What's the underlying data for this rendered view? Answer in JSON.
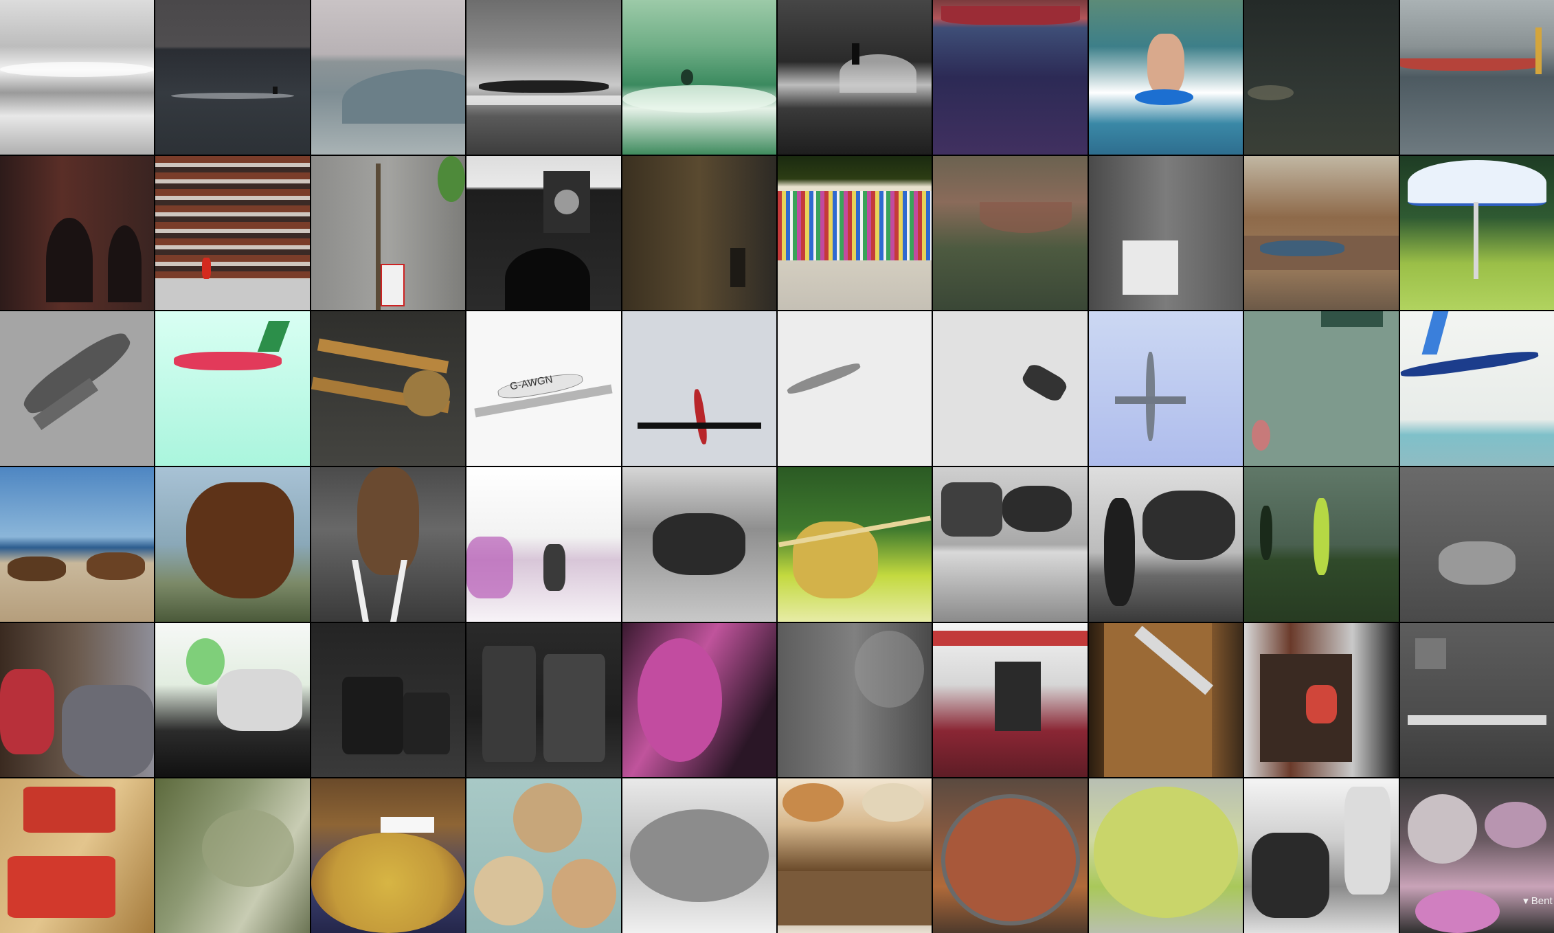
{
  "rows": 6,
  "cols": 10,
  "overlay_text": {
    "r2c3_sign": "",
    "r4c4_mark": "",
    "r3c4_registration": "G-AWGN",
    "r6c10_caption": "▾ Bent"
  },
  "tiles": [
    [
      "ocean-waves",
      "surfer-dusk",
      "wave-breaking",
      "surfers-paddling",
      "green-surf",
      "surfer-on-wave",
      "boat-on-water",
      "girl-bodyboard",
      "dark-sea",
      "boat-pole-man"
    ],
    [
      "brick-arches",
      "apartment-block",
      "street-signs",
      "clock-tower-arch",
      "old-building",
      "striped-fabric",
      "river-bridge",
      "blurred-street",
      "canal-town",
      "patio-umbrella"
    ],
    [
      "fighter-plane-blur",
      "red-jet",
      "biplane",
      "small-monoplane",
      "airliner-red",
      "jet-silhouette",
      "fighter-banking",
      "jet-overhead",
      "green-sky-plane",
      "colorful-airliner"
    ],
    [
      "beach-horse-race",
      "horse-head",
      "horse-parking-lot",
      "mural-figures",
      "pack-horse",
      "jousting-knight",
      "horse-carriage",
      "woman-with-horse",
      "beach-soccer",
      "white-horse-rider"
    ],
    [
      "bags-in-room",
      "doll-in-car",
      "dark-suitcases",
      "suitcase-stack",
      "pink-plush",
      "dark-interior",
      "airport-trolley",
      "scissors-on-box",
      "fridge-interior",
      "desk-room"
    ],
    [
      "square-pizza",
      "close-up-food",
      "loaded-pizza",
      "bento-trays",
      "pizza-plate",
      "restaurant-table",
      "stew-pot",
      "cheese-pie",
      "bento-sketch",
      "dessert-table"
    ]
  ],
  "colors": {
    "background": "#000000"
  }
}
